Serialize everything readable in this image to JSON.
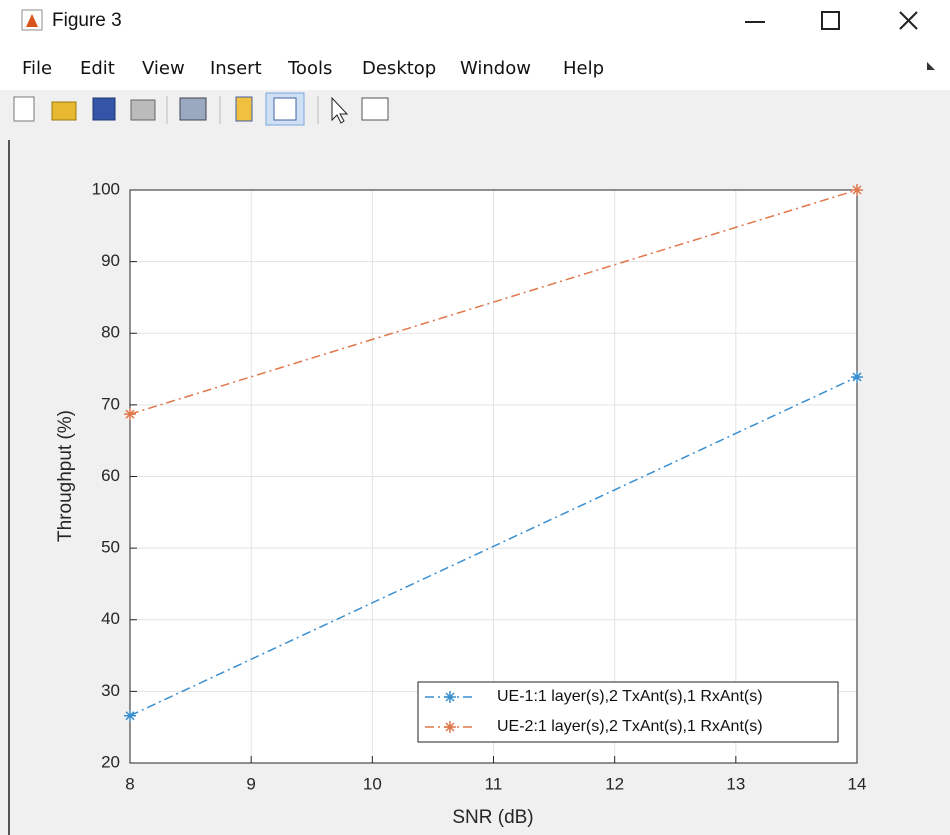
{
  "window": {
    "title": "Figure 3",
    "menu": [
      "File",
      "Edit",
      "View",
      "Insert",
      "Tools",
      "Desktop",
      "Window",
      "Help"
    ]
  },
  "chart_data": {
    "type": "line",
    "xlabel": "SNR (dB)",
    "ylabel": "Throughput (%)",
    "x": [
      8,
      14
    ],
    "series": [
      {
        "name": "UE-1:1 layer(s),2 TxAnt(s),1 RxAnt(s)",
        "color": "#3a8fd0",
        "values": [
          26.6,
          73.9
        ]
      },
      {
        "name": "UE-2:1 layer(s),2 TxAnt(s),1 RxAnt(s)",
        "color": "#e0774a",
        "values": [
          68.7,
          100
        ]
      }
    ],
    "xlim": [
      8,
      14
    ],
    "xticks": [
      8,
      9,
      10,
      11,
      12,
      13,
      14
    ],
    "ylim": [
      20,
      100
    ],
    "yticks": [
      20,
      30,
      40,
      50,
      60,
      70,
      80,
      90,
      100
    ],
    "grid": true,
    "legend": "lower right"
  }
}
